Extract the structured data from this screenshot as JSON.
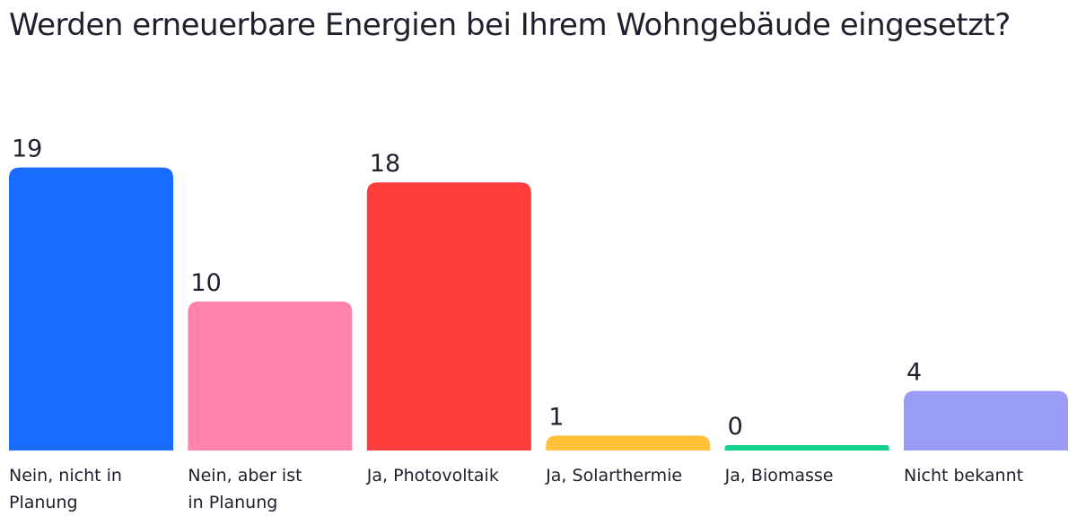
{
  "chart_data": {
    "type": "bar",
    "title": "Werden erneuerbare Energien bei Ihrem Wohngebäude eingesetzt?",
    "categories": [
      "Nein, nicht in Planung",
      "Nein, aber ist in Planung",
      "Ja, Photovoltaik",
      "Ja, Solarthermie",
      "Ja, Biomasse",
      "Nicht bekannt"
    ],
    "values": [
      19,
      10,
      18,
      1,
      0,
      4
    ],
    "colors": [
      "#1a6cff",
      "#ff83ac",
      "#ff3d3d",
      "#ffc23a",
      "#14d18e",
      "#9b9cf7"
    ],
    "grid": false,
    "legend": "none"
  }
}
